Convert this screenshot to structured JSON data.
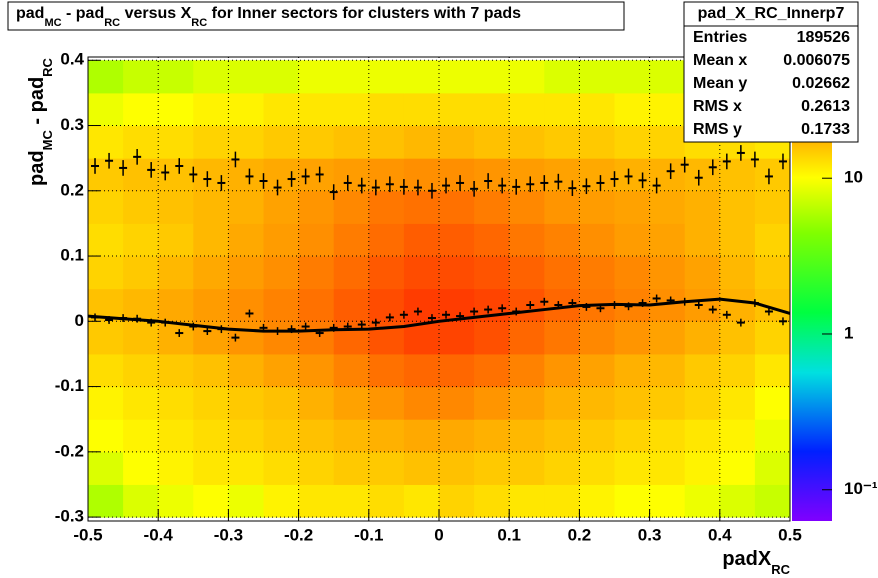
{
  "chart_data": {
    "type": "heatmap",
    "title": [
      "pad",
      "MC",
      " - pad",
      "RC",
      " versus X",
      "RC",
      " for Inner sectors for clusters with 7 pads"
    ],
    "xlabel": [
      "padX",
      "RC"
    ],
    "ylabel": [
      "pad",
      "MC",
      " - pad",
      "RC"
    ],
    "xlim": [
      -0.5,
      0.5
    ],
    "ylim": [
      -0.306,
      0.405
    ],
    "xticks": [
      -0.5,
      -0.4,
      -0.3,
      -0.2,
      -0.1,
      0,
      0.1,
      0.2,
      0.3,
      0.4,
      0.5
    ],
    "yticks": [
      -0.3,
      -0.2,
      -0.1,
      0,
      0.1,
      0.2,
      0.3,
      0.4
    ],
    "grid": true,
    "zlog": true,
    "zlim": [
      0.063,
      60
    ],
    "zticks": [
      {
        "value": 0.1,
        "label": "10⁻¹"
      },
      {
        "value": 1,
        "label": "1"
      },
      {
        "value": 10,
        "label": "10"
      }
    ],
    "palette": [
      [
        0,
        "#8000ff"
      ],
      [
        0.15,
        "#0020ff"
      ],
      [
        0.32,
        "#00e0e0"
      ],
      [
        0.45,
        "#00ff40"
      ],
      [
        0.62,
        "#80ff00"
      ],
      [
        0.74,
        "#ffff00"
      ],
      [
        0.85,
        "#ff9900"
      ],
      [
        1,
        "#ff0000"
      ]
    ],
    "xbins": [
      -0.5,
      -0.45,
      -0.4,
      -0.35,
      -0.3,
      -0.25,
      -0.2,
      -0.15,
      -0.1,
      -0.05,
      0,
      0.05,
      0.1,
      0.15,
      0.2,
      0.25,
      0.3,
      0.35,
      0.4,
      0.45,
      0.5
    ],
    "ybins": [
      -0.3,
      -0.25,
      -0.2,
      -0.15,
      -0.1,
      -0.05,
      0,
      0.05,
      0.1,
      0.15,
      0.2,
      0.25,
      0.3,
      0.35,
      0.4
    ],
    "z": [
      [
        6,
        8,
        9,
        10,
        9,
        11,
        12,
        12,
        13,
        12,
        14,
        13,
        12,
        12,
        11,
        10,
        10,
        9,
        8,
        7
      ],
      [
        8,
        10,
        11,
        12,
        12,
        13,
        14,
        15,
        15,
        16,
        16,
        15,
        15,
        14,
        13,
        12,
        12,
        11,
        10,
        8
      ],
      [
        10,
        11,
        12,
        13,
        14,
        15,
        16,
        17,
        18,
        19,
        19,
        18,
        17,
        16,
        15,
        14,
        13,
        12,
        11,
        9
      ],
      [
        11,
        12,
        13,
        14,
        15,
        16,
        18,
        20,
        22,
        24,
        24,
        22,
        20,
        18,
        17,
        16,
        15,
        14,
        12,
        10
      ],
      [
        13,
        14,
        15,
        16,
        18,
        20,
        22,
        25,
        28,
        30,
        30,
        28,
        25,
        22,
        20,
        18,
        17,
        15,
        14,
        12
      ],
      [
        15,
        16,
        18,
        20,
        22,
        24,
        26,
        30,
        34,
        38,
        38,
        35,
        30,
        27,
        24,
        22,
        20,
        18,
        16,
        14
      ],
      [
        16,
        17,
        19,
        21,
        23,
        25,
        28,
        32,
        36,
        40,
        40,
        38,
        34,
        30,
        27,
        25,
        23,
        21,
        18,
        16
      ],
      [
        14,
        15,
        17,
        19,
        21,
        23,
        26,
        29,
        33,
        36,
        36,
        34,
        31,
        28,
        26,
        24,
        22,
        20,
        17,
        15
      ],
      [
        13,
        14,
        15,
        17,
        19,
        21,
        23,
        26,
        29,
        32,
        32,
        30,
        27,
        25,
        23,
        21,
        20,
        18,
        16,
        14
      ],
      [
        14,
        15,
        16,
        17,
        18,
        20,
        22,
        24,
        27,
        28,
        28,
        26,
        24,
        22,
        21,
        20,
        19,
        18,
        16,
        15
      ],
      [
        15,
        16,
        16,
        17,
        18,
        19,
        20,
        21,
        22,
        23,
        23,
        22,
        21,
        20,
        19,
        18,
        18,
        17,
        16,
        15
      ],
      [
        12,
        13,
        13,
        14,
        14,
        15,
        15,
        16,
        16,
        17,
        17,
        16,
        16,
        15,
        15,
        14,
        14,
        13,
        13,
        12
      ],
      [
        9,
        10,
        10,
        11,
        11,
        12,
        12,
        12,
        13,
        13,
        13,
        13,
        12,
        12,
        12,
        11,
        11,
        10,
        10,
        9
      ],
      [
        6,
        7,
        7,
        8,
        8,
        8,
        9,
        9,
        9,
        9,
        9,
        9,
        9,
        8,
        8,
        8,
        8,
        7,
        7,
        6
      ]
    ],
    "series": [
      {
        "color": "#000000",
        "error": 0.012,
        "x": [
          -0.49,
          -0.47,
          -0.45,
          -0.43,
          -0.41,
          -0.39,
          -0.37,
          -0.35,
          -0.33,
          -0.31,
          -0.29,
          -0.27,
          -0.25,
          -0.23,
          -0.21,
          -0.19,
          -0.17,
          -0.15,
          -0.13,
          -0.11,
          -0.09,
          -0.07,
          -0.05,
          -0.03,
          -0.01,
          0.01,
          0.03,
          0.05,
          0.07,
          0.09,
          0.11,
          0.13,
          0.15,
          0.17,
          0.19,
          0.21,
          0.23,
          0.25,
          0.27,
          0.29,
          0.31,
          0.33,
          0.35,
          0.37,
          0.39,
          0.41,
          0.43,
          0.45,
          0.47,
          0.49
        ],
        "values": [
          0.238,
          0.246,
          0.235,
          0.252,
          0.232,
          0.228,
          0.238,
          0.225,
          0.218,
          0.212,
          0.248,
          0.222,
          0.215,
          0.205,
          0.218,
          0.222,
          0.225,
          0.198,
          0.212,
          0.208,
          0.205,
          0.21,
          0.206,
          0.205,
          0.2,
          0.208,
          0.212,
          0.203,
          0.215,
          0.208,
          0.206,
          0.21,
          0.212,
          0.214,
          0.204,
          0.207,
          0.212,
          0.218,
          0.222,
          0.216,
          0.208,
          0.23,
          0.24,
          0.22,
          0.236,
          0.245,
          0.258,
          0.248,
          0.222,
          0.245
        ]
      },
      {
        "color": "#000000",
        "error": 0.006,
        "x": [
          -0.49,
          -0.47,
          -0.45,
          -0.43,
          -0.41,
          -0.39,
          -0.37,
          -0.35,
          -0.33,
          -0.31,
          -0.29,
          -0.27,
          -0.25,
          -0.23,
          -0.21,
          -0.19,
          -0.17,
          -0.15,
          -0.13,
          -0.11,
          -0.09,
          -0.07,
          -0.05,
          -0.03,
          -0.01,
          0.01,
          0.03,
          0.05,
          0.07,
          0.09,
          0.11,
          0.13,
          0.15,
          0.17,
          0.19,
          0.21,
          0.23,
          0.25,
          0.27,
          0.29,
          0.31,
          0.33,
          0.35,
          0.37,
          0.39,
          0.41,
          0.43,
          0.45,
          0.47,
          0.49
        ],
        "values": [
          0.006,
          0.002,
          0.005,
          0.004,
          -0.002,
          -0.002,
          -0.018,
          -0.008,
          -0.015,
          -0.012,
          -0.025,
          0.012,
          -0.01,
          -0.015,
          -0.012,
          -0.008,
          -0.018,
          -0.01,
          -0.008,
          -0.005,
          -0.002,
          0.006,
          0.01,
          0.015,
          0.005,
          0.01,
          0.008,
          0.015,
          0.018,
          0.02,
          0.015,
          0.025,
          0.03,
          0.025,
          0.028,
          0.022,
          0.02,
          0.025,
          0.023,
          0.028,
          0.035,
          0.032,
          0.03,
          0.025,
          0.018,
          0.01,
          -0.002,
          0.028,
          0.015,
          0
        ]
      }
    ],
    "fit": {
      "color": "#000000",
      "x": [
        -0.5,
        -0.45,
        -0.4,
        -0.35,
        -0.3,
        -0.25,
        -0.2,
        -0.15,
        -0.1,
        -0.05,
        0,
        0.05,
        0.1,
        0.15,
        0.2,
        0.25,
        0.3,
        0.35,
        0.4,
        0.45,
        0.5
      ],
      "values": [
        0.008,
        0.004,
        0,
        -0.006,
        -0.012,
        -0.015,
        -0.015,
        -0.013,
        -0.012,
        -0.008,
        0,
        0.006,
        0.012,
        0.018,
        0.024,
        0.026,
        0.025,
        0.03,
        0.034,
        0.028,
        0.012
      ]
    },
    "stats": {
      "title": "pad_X_RC_Innerp7",
      "rows": [
        [
          "Entries",
          189526
        ],
        [
          "Mean x",
          0.006075
        ],
        [
          "Mean y",
          0.02662
        ],
        [
          "RMS x",
          0.2613
        ],
        [
          "RMS y",
          0.1733
        ]
      ]
    }
  }
}
